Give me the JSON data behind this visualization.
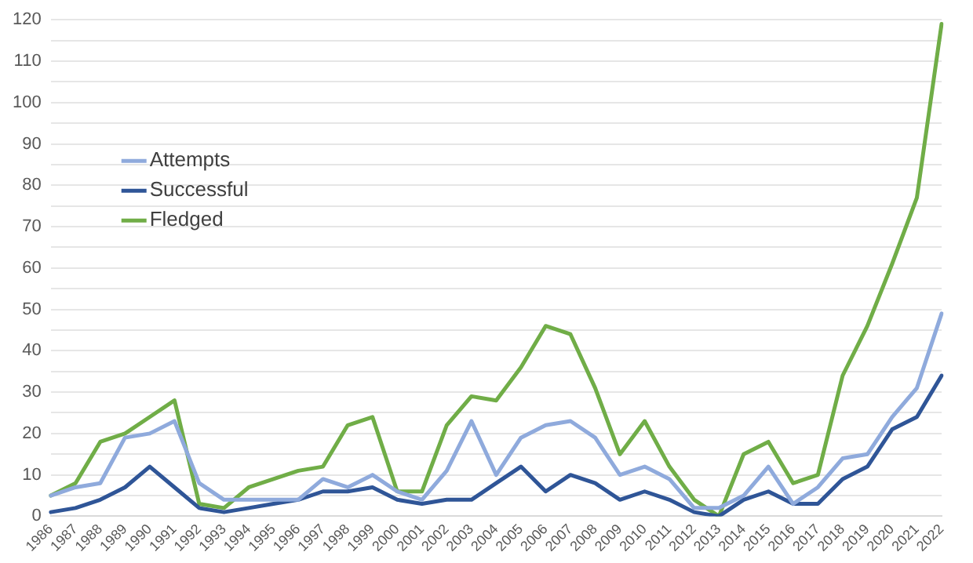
{
  "chart_data": {
    "type": "line",
    "categories": [
      "1986",
      "1987",
      "1988",
      "1989",
      "1990",
      "1991",
      "1992",
      "1993",
      "1994",
      "1995",
      "1996",
      "1997",
      "1998",
      "1999",
      "2000",
      "2001",
      "2002",
      "2003",
      "2004",
      "2005",
      "2006",
      "2007",
      "2008",
      "2009",
      "2010",
      "2011",
      "2012",
      "2013",
      "2014",
      "2015",
      "2016",
      "2017",
      "2018",
      "2019",
      "2020",
      "2021",
      "2022"
    ],
    "series": [
      {
        "name": "Attempts",
        "color": "#8faadc",
        "values": [
          5,
          7,
          8,
          19,
          20,
          23,
          8,
          4,
          4,
          4,
          4,
          9,
          7,
          10,
          6,
          4,
          11,
          23,
          10,
          19,
          22,
          23,
          19,
          10,
          12,
          9,
          2,
          2,
          5,
          12,
          3,
          7,
          14,
          15,
          24,
          31,
          49
        ]
      },
      {
        "name": "Successful",
        "color": "#2f5597",
        "values": [
          1,
          2,
          4,
          7,
          12,
          7,
          2,
          1,
          2,
          3,
          4,
          6,
          6,
          7,
          4,
          3,
          4,
          4,
          8,
          12,
          6,
          10,
          8,
          4,
          6,
          4,
          1,
          0,
          4,
          6,
          3,
          3,
          9,
          12,
          21,
          24,
          34
        ]
      },
      {
        "name": "Fledged",
        "color": "#70ad47",
        "values": [
          5,
          8,
          18,
          20,
          24,
          28,
          3,
          2,
          7,
          9,
          11,
          12,
          22,
          24,
          6,
          6,
          22,
          29,
          28,
          36,
          46,
          44,
          31,
          15,
          23,
          12,
          4,
          0,
          15,
          18,
          8,
          10,
          34,
          46,
          61,
          77,
          119
        ]
      }
    ],
    "ylim": [
      0,
      120
    ],
    "yticks": [
      0,
      {
        "value": 5,
        "label": null
      },
      10,
      {
        "value": 15,
        "label": null
      },
      20,
      {
        "value": 25,
        "label": null
      },
      30,
      {
        "value": 35,
        "label": null
      },
      40,
      {
        "value": 45,
        "label": null
      },
      50,
      {
        "value": 55,
        "label": null
      },
      60,
      {
        "value": 65,
        "label": null
      },
      70,
      {
        "value": 75,
        "label": null
      },
      80,
      {
        "value": 85,
        "label": null
      },
      90,
      {
        "value": 95,
        "label": null
      },
      100,
      {
        "value": 105,
        "label": null
      },
      110,
      {
        "value": 115,
        "label": null
      },
      120
    ],
    "grid": "y",
    "legend": "left",
    "marker": "none",
    "line_style": "solid"
  }
}
